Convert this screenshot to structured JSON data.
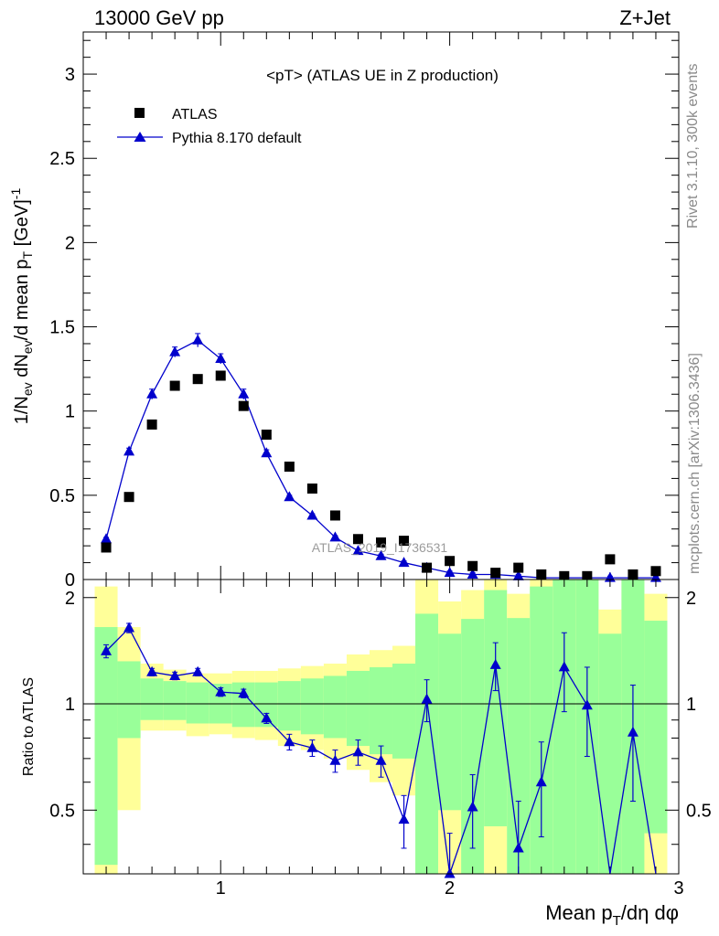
{
  "header": {
    "left": "13000 GeV pp",
    "right": "Z+Jet"
  },
  "side_labels": {
    "rivet": "Rivet 3.1.10,  300k events",
    "mcplots": "mcplots.cern.ch [arXiv:1306.3436]"
  },
  "watermark": "ATLAS_2019_I1736531",
  "chart_data": [
    {
      "type": "scatter",
      "title": "<pT> (ATLAS UE in Z production)",
      "ylabel": "1/N_ev dN_ev/d mean p_T [GeV]^-1",
      "xlim": [
        0.4,
        3.0
      ],
      "ylim": [
        0,
        3.25
      ],
      "yticks": [
        0,
        0.5,
        1,
        1.5,
        2,
        2.5,
        3
      ],
      "ytick_labels": [
        "0",
        "0.5",
        "1",
        "1.5",
        "2",
        "2.5",
        "3"
      ],
      "legend_placement": "top-left",
      "series": [
        {
          "name": "ATLAS",
          "marker": "square",
          "color": "#000000",
          "x": [
            0.5,
            0.6,
            0.7,
            0.8,
            0.9,
            1.0,
            1.1,
            1.2,
            1.3,
            1.4,
            1.5,
            1.6,
            1.7,
            1.8,
            1.9,
            2.0,
            2.1,
            2.2,
            2.3,
            2.4,
            2.5,
            2.6,
            2.7,
            2.8,
            2.9
          ],
          "y": [
            0.19,
            0.49,
            0.92,
            1.15,
            1.19,
            1.21,
            1.03,
            0.86,
            0.67,
            0.54,
            0.38,
            0.24,
            0.22,
            0.23,
            0.07,
            0.11,
            0.08,
            0.04,
            0.07,
            0.03,
            0.02,
            0.02,
            0.12,
            0.03,
            0.05
          ]
        },
        {
          "name": "Pythia 8.170 default",
          "marker": "triangle",
          "color": "#0000cc",
          "x": [
            0.5,
            0.6,
            0.7,
            0.8,
            0.9,
            1.0,
            1.1,
            1.2,
            1.3,
            1.4,
            1.5,
            1.6,
            1.7,
            1.8,
            1.9,
            2.0,
            2.1,
            2.2,
            2.3,
            2.4,
            2.5,
            2.6,
            2.7,
            2.8,
            2.9
          ],
          "y": [
            0.24,
            0.76,
            1.1,
            1.35,
            1.42,
            1.31,
            1.1,
            0.75,
            0.49,
            0.38,
            0.25,
            0.17,
            0.14,
            0.1,
            0.07,
            0.04,
            0.03,
            0.03,
            0.02,
            0.01,
            0.01,
            0.01,
            0.01,
            0.01,
            0.01
          ],
          "yerr": [
            0.01,
            0.02,
            0.03,
            0.03,
            0.04,
            0.03,
            0.03,
            0.02,
            0.01,
            0.01,
            0.01,
            0.01,
            0.01,
            0.01,
            0.01,
            0.01,
            0.01,
            0.01,
            0.01,
            0.01,
            0.01,
            0.01,
            0.01,
            0.01,
            0.01
          ]
        }
      ]
    },
    {
      "type": "line",
      "ylabel": "Ratio to ATLAS",
      "xlabel": "Mean p_T/dη dφ",
      "xlim": [
        0.4,
        3.0
      ],
      "ylim": [
        0.33,
        2.25
      ],
      "xticks": [
        1,
        2,
        3
      ],
      "xtick_labels": [
        "1",
        "2",
        "3"
      ],
      "yticks": [
        0.5,
        1,
        2
      ],
      "ytick_labels": [
        "0.5",
        "1",
        "2"
      ],
      "reference_line": 1,
      "bands": {
        "x_edges": [
          0.45,
          0.55,
          0.65,
          0.75,
          0.85,
          0.95,
          1.05,
          1.15,
          1.25,
          1.35,
          1.45,
          1.55,
          1.65,
          1.75,
          1.85,
          1.95,
          2.05,
          2.15,
          2.25,
          2.35,
          2.45,
          2.55,
          2.65,
          2.75,
          2.85,
          2.95
        ],
        "yellow_low": [
          0.33,
          0.5,
          0.84,
          0.84,
          0.81,
          0.82,
          0.8,
          0.79,
          0.76,
          0.74,
          0.7,
          0.65,
          0.6,
          0.55,
          0.33,
          0.33,
          0.33,
          0.33,
          0.33,
          0.33,
          0.33,
          0.33,
          0.33,
          0.33,
          0.33
        ],
        "yellow_high": [
          2.15,
          1.65,
          1.3,
          1.25,
          1.22,
          1.22,
          1.24,
          1.24,
          1.26,
          1.28,
          1.3,
          1.38,
          1.42,
          1.46,
          2.25,
          1.95,
          2.1,
          2.25,
          2.05,
          2.25,
          2.25,
          2.25,
          1.85,
          2.25,
          2.05
        ],
        "green_low": [
          0.35,
          0.8,
          0.9,
          0.9,
          0.88,
          0.88,
          0.86,
          0.86,
          0.84,
          0.82,
          0.8,
          0.76,
          0.72,
          0.7,
          0.33,
          0.5,
          0.33,
          0.45,
          0.33,
          0.33,
          0.33,
          0.33,
          0.33,
          0.33,
          0.43
        ],
        "green_high": [
          1.65,
          1.32,
          1.18,
          1.16,
          1.15,
          1.14,
          1.15,
          1.15,
          1.16,
          1.18,
          1.2,
          1.24,
          1.27,
          1.3,
          1.8,
          1.58,
          1.74,
          2.1,
          1.75,
          2.15,
          2.25,
          2.25,
          1.58,
          2.25,
          1.72
        ]
      },
      "series": [
        {
          "name": "Pythia 8.170 default",
          "color": "#0000cc",
          "x": [
            0.5,
            0.6,
            0.7,
            0.8,
            0.9,
            1.0,
            1.1,
            1.2,
            1.3,
            1.4,
            1.5,
            1.6,
            1.7,
            1.8,
            1.9,
            2.0,
            2.1,
            2.2,
            2.3,
            2.4,
            2.5,
            2.6,
            2.7,
            2.8,
            2.9
          ],
          "y": [
            1.41,
            1.64,
            1.23,
            1.2,
            1.23,
            1.08,
            1.07,
            0.91,
            0.78,
            0.75,
            0.69,
            0.73,
            0.69,
            0.47,
            1.03,
            0.33,
            0.51,
            1.29,
            0.39,
            0.6,
            1.27,
            0.99,
            0.2,
            0.83,
            0.2
          ],
          "yerr": [
            0.06,
            0.05,
            0.03,
            0.03,
            0.03,
            0.03,
            0.03,
            0.03,
            0.04,
            0.04,
            0.05,
            0.06,
            0.07,
            0.08,
            0.14,
            0.1,
            0.12,
            0.2,
            0.14,
            0.18,
            0.32,
            0.28,
            0.1,
            0.3,
            0.1
          ]
        }
      ]
    }
  ]
}
